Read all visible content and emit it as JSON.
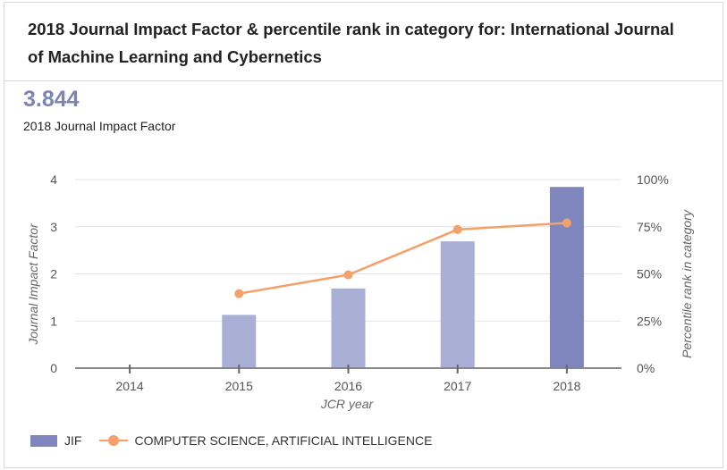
{
  "header": {
    "title": "2018 Journal Impact Factor & percentile rank in category for: International Journal of Machine Learning and Cybernetics"
  },
  "metric": {
    "value": "3.844",
    "label": "2018 Journal Impact Factor"
  },
  "legend": {
    "bar_label": "JIF",
    "line_label": "COMPUTER SCIENCE, ARTIFICIAL INTELLIGENCE"
  },
  "colors": {
    "bar": "#aaafd6",
    "bar_highlight": "#7f86bd",
    "line": "#f4a06a",
    "accent": "#7c84b6"
  },
  "chart_data": {
    "type": "bar",
    "title": "2018 Journal Impact Factor & percentile rank in category",
    "xlabel": "JCR year",
    "ylabel": "Journal Impact Factor",
    "y2label": "Percentile rank in category",
    "categories": [
      "2014",
      "2015",
      "2016",
      "2017",
      "2018"
    ],
    "ylim": [
      0,
      4
    ],
    "y2lim": [
      0,
      100
    ],
    "yticks": [
      "0",
      "1",
      "2",
      "3",
      "4"
    ],
    "y2ticks": [
      "0%",
      "25%",
      "50%",
      "75%",
      "100%"
    ],
    "series": [
      {
        "name": "JIF",
        "type": "bar",
        "axis": "left",
        "values": [
          0,
          1.13,
          1.69,
          2.69,
          3.844
        ]
      },
      {
        "name": "COMPUTER SCIENCE, ARTIFICIAL INTELLIGENCE",
        "type": "line",
        "axis": "right",
        "values": [
          null,
          39.5,
          49.5,
          73.5,
          77
        ]
      }
    ],
    "grid": true,
    "legend_position": "bottom-left"
  }
}
